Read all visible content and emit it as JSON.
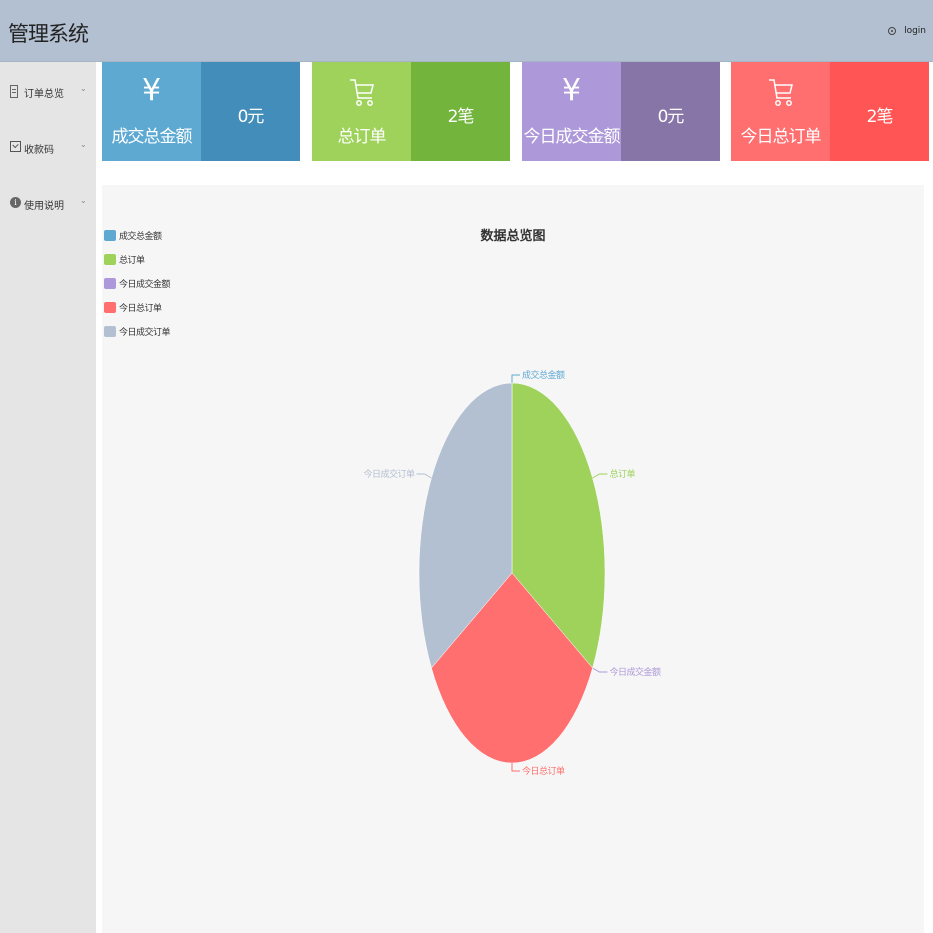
{
  "header": {
    "app_title": "管理系统",
    "user_icon": "user-icon",
    "user_label": "login"
  },
  "sidebar": {
    "items": [
      {
        "label": "订单总览",
        "icon": "list-icon"
      },
      {
        "label": "收款码",
        "icon": "qrcode-icon"
      },
      {
        "label": "使用说明",
        "icon": "info-icon"
      }
    ],
    "chevron": "⌄"
  },
  "cards": [
    {
      "title": "成交总金额",
      "value": "0元",
      "icon": "yen-icon",
      "glyph": "¥",
      "color_left": "#5ea9d2",
      "color_right": "#428db9"
    },
    {
      "title": "总订单",
      "value": "2笔",
      "icon": "cart-icon",
      "glyph": "",
      "color_left": "#9ed25b",
      "color_right": "#72b43c"
    },
    {
      "title": "今日成交金额",
      "value": "0元",
      "icon": "yen-icon",
      "glyph": "¥",
      "color_left": "#ad98d9",
      "color_right": "#8775a7"
    },
    {
      "title": "今日总订单",
      "value": "2笔",
      "icon": "cart-icon",
      "glyph": "",
      "color_left": "#ff6f6f",
      "color_right": "#ff5555"
    }
  ],
  "chart_data": {
    "type": "pie",
    "title": "数据总览图",
    "legend_position": "top-left",
    "series": [
      {
        "name": "成交总金额",
        "value": 0,
        "color": "#5ea9d2"
      },
      {
        "name": "总订单",
        "value": 2,
        "color": "#9ed25b"
      },
      {
        "name": "今日成交金额",
        "value": 0,
        "color": "#ad98d9"
      },
      {
        "name": "今日总订单",
        "value": 2,
        "color": "#ff6f6f"
      },
      {
        "name": "今日成交订单",
        "value": 2,
        "color": "#b3c0d1"
      }
    ]
  }
}
